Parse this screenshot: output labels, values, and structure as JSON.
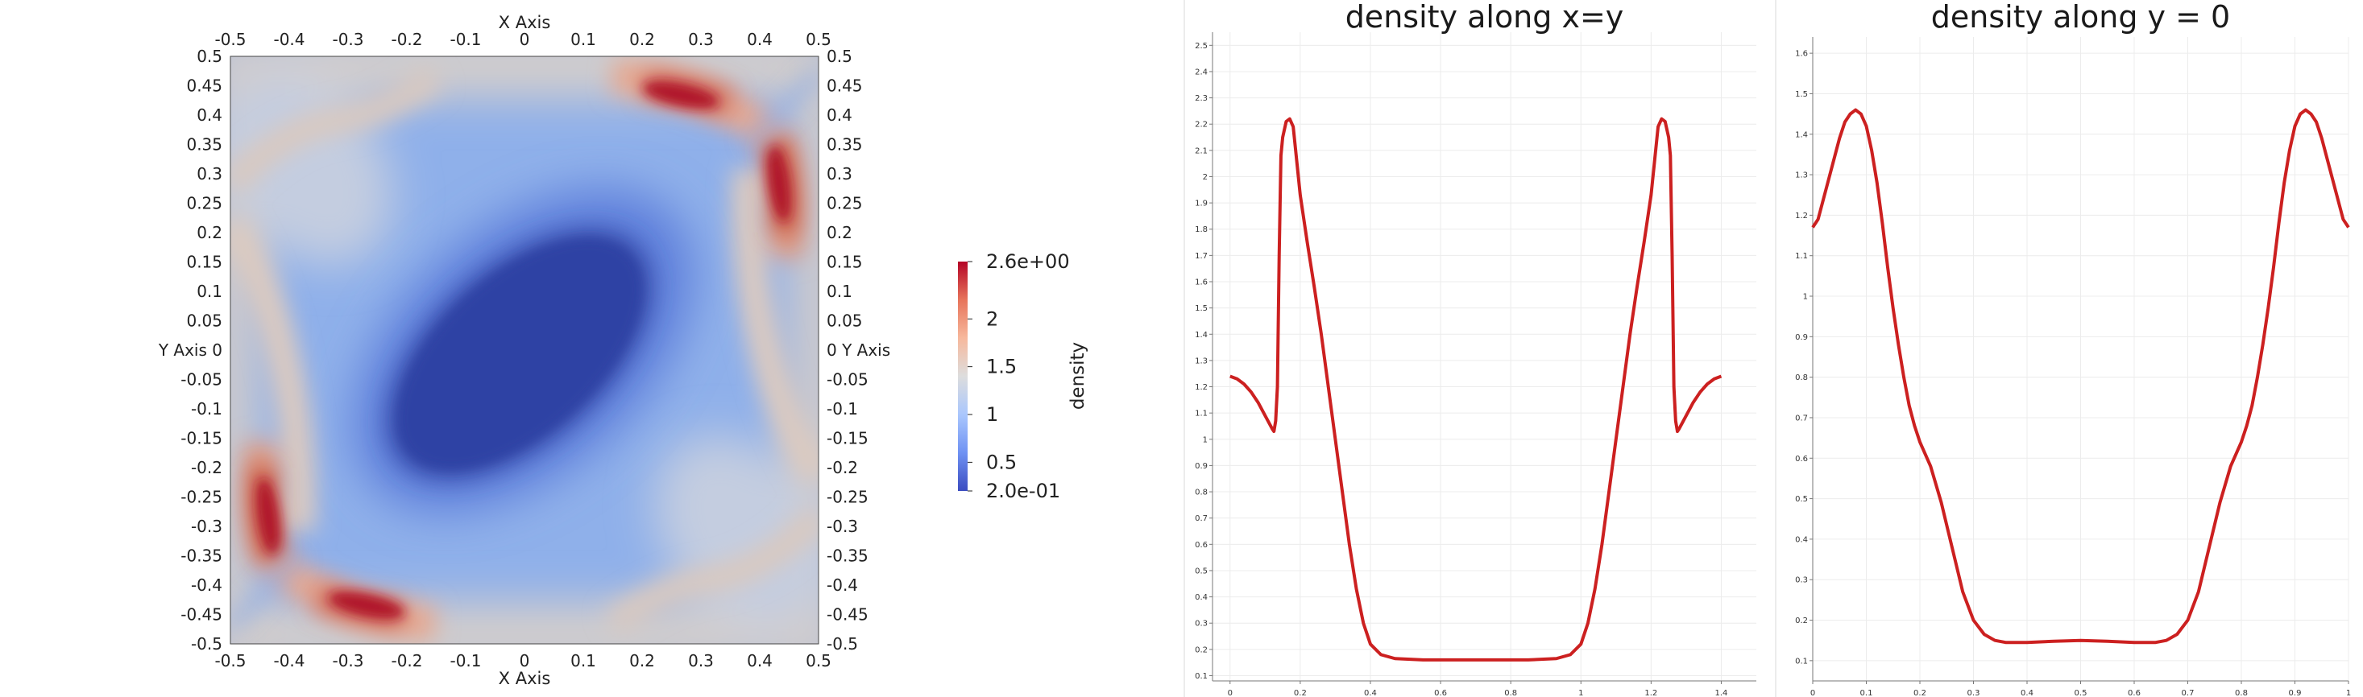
{
  "chart_data": [
    {
      "type": "heatmap",
      "field": "density",
      "xlabel": "X Axis",
      "ylabel": "Y Axis",
      "xlim": [
        -0.5,
        0.5
      ],
      "ylim": [
        -0.5,
        0.5
      ],
      "ticks": [
        "-0.5",
        "-0.45",
        "-0.4",
        "-0.35",
        "-0.3",
        "-0.25",
        "-0.2",
        "-0.15",
        "-0.1",
        "-0.05",
        "0",
        "0.05",
        "0.1",
        "0.15",
        "0.2",
        "0.25",
        "0.3",
        "0.35",
        "0.4",
        "0.45",
        "0.5"
      ],
      "x_tick_labels": [
        "-0.5",
        "-0.4",
        "-0.3",
        "-0.2",
        "-0.1",
        "0",
        "0.1",
        "0.2",
        "0.3",
        "0.4",
        "0.5"
      ],
      "colorbar": {
        "title": "density",
        "range": [
          0.2,
          2.6
        ],
        "labels": [
          "2.6e+00",
          "2",
          "1.5",
          "1",
          "0.5",
          "2.0e-01"
        ],
        "label_values": [
          2.6,
          2.0,
          1.5,
          1.0,
          0.5,
          0.2
        ],
        "colors": [
          "#3b4cc0",
          "#6f92f3",
          "#aac7fd",
          "#dddddd",
          "#f7b89c",
          "#e7745b",
          "#b40426"
        ]
      }
    },
    {
      "type": "line",
      "title": "density along x=y",
      "xlim": [
        -0.05,
        1.5
      ],
      "ylim": [
        0.08,
        2.55
      ],
      "x_ticks": [
        "0",
        "0.2",
        "0.4",
        "0.6",
        "0.8",
        "1",
        "1.2",
        "1.4"
      ],
      "y_ticks": [
        "0.1",
        "0.2",
        "0.3",
        "0.4",
        "0.5",
        "0.6",
        "0.7",
        "0.8",
        "0.9",
        "1",
        "1.1",
        "1.2",
        "1.3",
        "1.4",
        "1.5",
        "1.6",
        "1.7",
        "1.8",
        "1.9",
        "2",
        "2.1",
        "2.2",
        "2.3",
        "2.4",
        "2.5"
      ],
      "color": "#cc2020",
      "points": [
        [
          0,
          1.24
        ],
        [
          0.02,
          1.23
        ],
        [
          0.04,
          1.21
        ],
        [
          0.06,
          1.18
        ],
        [
          0.08,
          1.14
        ],
        [
          0.1,
          1.09
        ],
        [
          0.12,
          1.04
        ],
        [
          0.125,
          1.03
        ],
        [
          0.13,
          1.07
        ],
        [
          0.135,
          1.2
        ],
        [
          0.14,
          1.7
        ],
        [
          0.145,
          2.08
        ],
        [
          0.15,
          2.15
        ],
        [
          0.16,
          2.21
        ],
        [
          0.17,
          2.22
        ],
        [
          0.18,
          2.19
        ],
        [
          0.19,
          2.06
        ],
        [
          0.2,
          1.93
        ],
        [
          0.22,
          1.75
        ],
        [
          0.24,
          1.58
        ],
        [
          0.26,
          1.4
        ],
        [
          0.28,
          1.2
        ],
        [
          0.3,
          1.0
        ],
        [
          0.32,
          0.8
        ],
        [
          0.34,
          0.6
        ],
        [
          0.36,
          0.43
        ],
        [
          0.38,
          0.3
        ],
        [
          0.4,
          0.22
        ],
        [
          0.43,
          0.18
        ],
        [
          0.47,
          0.165
        ],
        [
          0.55,
          0.16
        ],
        [
          0.65,
          0.16
        ],
        [
          0.75,
          0.16
        ],
        [
          0.85,
          0.16
        ],
        [
          0.93,
          0.165
        ],
        [
          0.97,
          0.18
        ],
        [
          1.0,
          0.22
        ],
        [
          1.02,
          0.3
        ],
        [
          1.04,
          0.43
        ],
        [
          1.06,
          0.6
        ],
        [
          1.08,
          0.8
        ],
        [
          1.1,
          1.0
        ],
        [
          1.12,
          1.2
        ],
        [
          1.14,
          1.4
        ],
        [
          1.16,
          1.58
        ],
        [
          1.18,
          1.75
        ],
        [
          1.2,
          1.93
        ],
        [
          1.21,
          2.06
        ],
        [
          1.22,
          2.19
        ],
        [
          1.23,
          2.22
        ],
        [
          1.24,
          2.21
        ],
        [
          1.25,
          2.15
        ],
        [
          1.255,
          2.08
        ],
        [
          1.26,
          1.7
        ],
        [
          1.265,
          1.2
        ],
        [
          1.27,
          1.07
        ],
        [
          1.275,
          1.03
        ],
        [
          1.28,
          1.04
        ],
        [
          1.3,
          1.09
        ],
        [
          1.32,
          1.14
        ],
        [
          1.34,
          1.18
        ],
        [
          1.36,
          1.21
        ],
        [
          1.38,
          1.23
        ],
        [
          1.4,
          1.24
        ]
      ]
    },
    {
      "type": "line",
      "title": "density along y = 0",
      "xlim": [
        0,
        1
      ],
      "ylim": [
        0.05,
        1.64
      ],
      "x_ticks": [
        "0",
        "0.1",
        "0.2",
        "0.3",
        "0.4",
        "0.5",
        "0.6",
        "0.7",
        "0.8",
        "0.9",
        "1"
      ],
      "y_ticks": [
        "0.1",
        "0.2",
        "0.3",
        "0.4",
        "0.5",
        "0.6",
        "0.7",
        "0.8",
        "0.9",
        "1",
        "1.1",
        "1.2",
        "1.3",
        "1.4",
        "1.5",
        "1.6"
      ],
      "color": "#cc2020",
      "points": [
        [
          0,
          1.17
        ],
        [
          0.01,
          1.19
        ],
        [
          0.02,
          1.24
        ],
        [
          0.03,
          1.29
        ],
        [
          0.04,
          1.34
        ],
        [
          0.05,
          1.39
        ],
        [
          0.06,
          1.43
        ],
        [
          0.07,
          1.45
        ],
        [
          0.08,
          1.46
        ],
        [
          0.09,
          1.45
        ],
        [
          0.1,
          1.42
        ],
        [
          0.11,
          1.36
        ],
        [
          0.12,
          1.28
        ],
        [
          0.13,
          1.18
        ],
        [
          0.14,
          1.07
        ],
        [
          0.15,
          0.97
        ],
        [
          0.16,
          0.88
        ],
        [
          0.17,
          0.8
        ],
        [
          0.18,
          0.73
        ],
        [
          0.19,
          0.68
        ],
        [
          0.2,
          0.64
        ],
        [
          0.22,
          0.58
        ],
        [
          0.24,
          0.49
        ],
        [
          0.26,
          0.38
        ],
        [
          0.28,
          0.27
        ],
        [
          0.3,
          0.2
        ],
        [
          0.32,
          0.165
        ],
        [
          0.34,
          0.15
        ],
        [
          0.36,
          0.145
        ],
        [
          0.4,
          0.145
        ],
        [
          0.45,
          0.148
        ],
        [
          0.5,
          0.15
        ],
        [
          0.55,
          0.148
        ],
        [
          0.6,
          0.145
        ],
        [
          0.64,
          0.145
        ],
        [
          0.66,
          0.15
        ],
        [
          0.68,
          0.165
        ],
        [
          0.7,
          0.2
        ],
        [
          0.72,
          0.27
        ],
        [
          0.74,
          0.38
        ],
        [
          0.76,
          0.49
        ],
        [
          0.78,
          0.58
        ],
        [
          0.8,
          0.64
        ],
        [
          0.81,
          0.68
        ],
        [
          0.82,
          0.73
        ],
        [
          0.83,
          0.8
        ],
        [
          0.84,
          0.88
        ],
        [
          0.85,
          0.97
        ],
        [
          0.86,
          1.07
        ],
        [
          0.87,
          1.18
        ],
        [
          0.88,
          1.28
        ],
        [
          0.89,
          1.36
        ],
        [
          0.9,
          1.42
        ],
        [
          0.91,
          1.45
        ],
        [
          0.92,
          1.46
        ],
        [
          0.93,
          1.45
        ],
        [
          0.94,
          1.43
        ],
        [
          0.95,
          1.39
        ],
        [
          0.96,
          1.34
        ],
        [
          0.97,
          1.29
        ],
        [
          0.98,
          1.24
        ],
        [
          0.99,
          1.19
        ],
        [
          1,
          1.17
        ]
      ]
    }
  ]
}
